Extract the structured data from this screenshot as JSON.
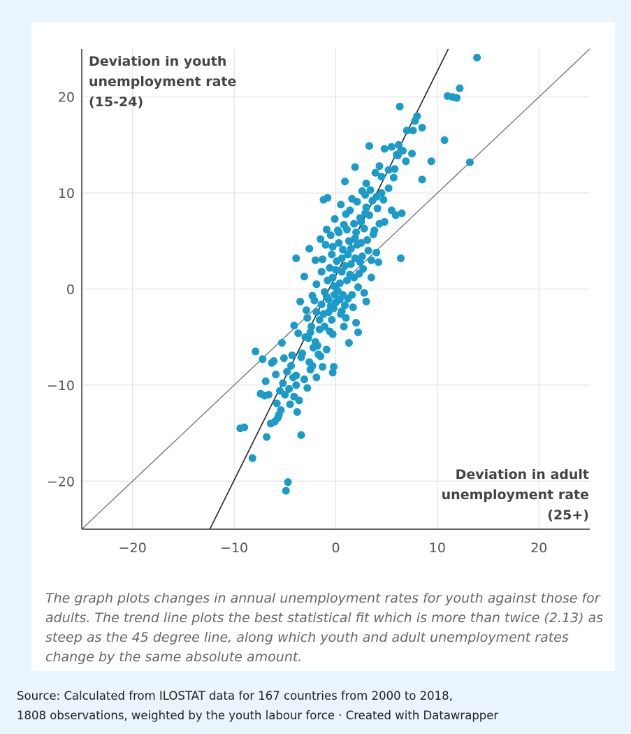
{
  "chart_data": {
    "type": "scatter",
    "title": "",
    "xlabel": "Deviation in adult unemployment rate (25+)",
    "ylabel": "Deviation in youth unemployment rate (15-24)",
    "xlabel_lines": [
      "Deviation in adult",
      "unemployment rate",
      "(25+)"
    ],
    "ylabel_lines": [
      "Deviation in youth",
      "unemployment rate",
      "(15-24)"
    ],
    "xlim": [
      -25,
      25
    ],
    "ylim": [
      -25,
      25
    ],
    "x_ticks": [
      -20,
      -10,
      0,
      10,
      20
    ],
    "y_ticks": [
      -20,
      -10,
      0,
      10,
      20
    ],
    "x_tick_labels": [
      "−20",
      "−10",
      "0",
      "10",
      "20"
    ],
    "y_tick_labels": [
      "−20",
      "−10",
      "0",
      "10",
      "20"
    ],
    "grid": true,
    "point_color": "#1a9bc9",
    "reference_lines": [
      {
        "label": "45 degree line",
        "slope": 1,
        "intercept": 0,
        "color": "#777777"
      },
      {
        "label": "trend line",
        "slope": 2.13,
        "intercept": 1.4,
        "color": "#222222"
      }
    ],
    "points": [
      [
        13.9,
        24.1
      ],
      [
        12.2,
        20.9
      ],
      [
        11.9,
        19.9
      ],
      [
        11.5,
        20.0
      ],
      [
        11.0,
        20.1
      ],
      [
        10.7,
        15.5
      ],
      [
        9.4,
        13.3
      ],
      [
        8.5,
        11.4
      ],
      [
        13.2,
        13.2
      ],
      [
        8.5,
        16.8
      ],
      [
        8.0,
        18.0
      ],
      [
        7.8,
        17.5
      ],
      [
        7.6,
        16.5
      ],
      [
        7.0,
        16.5
      ],
      [
        6.3,
        19.0
      ],
      [
        6.2,
        15.0
      ],
      [
        6.0,
        14.0
      ],
      [
        5.8,
        12.5
      ],
      [
        5.5,
        14.8
      ],
      [
        4.8,
        14.6
      ],
      [
        4.3,
        12.8
      ],
      [
        3.3,
        14.9
      ],
      [
        1.9,
        12.7
      ],
      [
        0.9,
        11.2
      ],
      [
        6.4,
        3.2
      ],
      [
        4.2,
        2.8
      ],
      [
        5.9,
        7.7
      ],
      [
        6.5,
        7.9
      ],
      [
        -0.8,
        9.5
      ],
      [
        -1.2,
        9.3
      ],
      [
        -2.6,
        4.2
      ],
      [
        -3.9,
        3.2
      ],
      [
        -3.1,
        1.3
      ],
      [
        -2.3,
        -0.7
      ],
      [
        -3.5,
        -1.3
      ],
      [
        -2.9,
        -2.2
      ],
      [
        -4.1,
        -3.8
      ],
      [
        -5.3,
        -5.6
      ],
      [
        -6.1,
        -7.5
      ],
      [
        -6.9,
        -9.6
      ],
      [
        -7.4,
        -10.9
      ],
      [
        -7.0,
        -11.1
      ],
      [
        -5.8,
        -11.9
      ],
      [
        -5.6,
        -13.1
      ],
      [
        -6.0,
        -13.8
      ],
      [
        -5.7,
        -13.4
      ],
      [
        -6.4,
        -14.0
      ],
      [
        -6.8,
        -15.4
      ],
      [
        -9.4,
        -14.5
      ],
      [
        -9.0,
        -14.4
      ],
      [
        -8.2,
        -17.6
      ],
      [
        -4.7,
        -20.1
      ],
      [
        -4.9,
        -21.0
      ],
      [
        -3.4,
        -15.2
      ],
      [
        -3.8,
        -12.8
      ],
      [
        -2.8,
        -10.3
      ],
      [
        -3.9,
        -9.0
      ],
      [
        -4.4,
        -8.0
      ],
      [
        -5.1,
        -7.2
      ],
      [
        -5.9,
        -8.9
      ],
      [
        -6.3,
        -7.7
      ],
      [
        -7.9,
        -6.5
      ],
      [
        -7.2,
        -7.3
      ],
      [
        -1.9,
        -9.2
      ],
      [
        -0.3,
        -8.7
      ],
      [
        -0.2,
        -8.1
      ],
      [
        -1.3,
        -8.1
      ],
      [
        0.8,
        -3.9
      ],
      [
        1.3,
        -5.6
      ],
      [
        2.2,
        -4.5
      ],
      [
        2.0,
        -3.5
      ],
      [
        3.0,
        -1.3
      ],
      [
        3.5,
        1.2
      ],
      [
        4.0,
        3.8
      ],
      [
        2.5,
        4.8
      ],
      [
        3.8,
        6.1
      ],
      [
        4.8,
        7.0
      ],
      [
        5.5,
        8.2
      ],
      [
        4.5,
        10.0
      ],
      [
        5.2,
        10.5
      ],
      [
        3.9,
        12.1
      ],
      [
        4.5,
        11.7
      ],
      [
        3.0,
        11.0
      ],
      [
        2.6,
        10.2
      ],
      [
        1.6,
        9.4
      ],
      [
        0.5,
        8.8
      ],
      [
        -0.1,
        7.3
      ],
      [
        -0.9,
        6.2
      ],
      [
        -1.5,
        5.2
      ],
      [
        -2.0,
        3.0
      ],
      [
        -1.4,
        1.8
      ],
      [
        -1.9,
        0.5
      ],
      [
        -1.1,
        -0.3
      ],
      [
        -0.5,
        -1.8
      ],
      [
        -1.6,
        -3.2
      ],
      [
        -2.4,
        -3.9
      ],
      [
        -2.0,
        -5.5
      ],
      [
        -1.5,
        -7.0
      ],
      [
        -0.9,
        -6.3
      ],
      [
        -0.3,
        -4.7
      ],
      [
        0.6,
        -2.3
      ],
      [
        1.1,
        0.9
      ],
      [
        1.5,
        2.6
      ],
      [
        2.1,
        4.6
      ],
      [
        2.8,
        6.3
      ],
      [
        3.3,
        7.7
      ],
      [
        1.0,
        7.8
      ],
      [
        0.3,
        5.9
      ],
      [
        -0.3,
        4.4
      ],
      [
        -0.6,
        2.2
      ],
      [
        -0.2,
        0.3
      ],
      [
        0.4,
        -1.1
      ],
      [
        0.9,
        -1.7
      ],
      [
        1.6,
        -0.6
      ],
      [
        2.3,
        1.6
      ],
      [
        2.6,
        3.4
      ],
      [
        3.1,
        5.1
      ],
      [
        1.8,
        6.8
      ],
      [
        0.7,
        4.1
      ],
      [
        0.1,
        2.9
      ],
      [
        -0.7,
        -1.1
      ],
      [
        -1.2,
        -2.6
      ],
      [
        -2.7,
        -5.1
      ],
      [
        -3.3,
        -6.7
      ],
      [
        -2.2,
        -6.1
      ],
      [
        -4.6,
        -10.4
      ],
      [
        -5.2,
        -9.8
      ],
      [
        -4.1,
        -11.2
      ],
      [
        -3.6,
        -11.6
      ],
      [
        -2.5,
        -8.4
      ],
      [
        -1.8,
        -5.9
      ],
      [
        -0.4,
        -3.2
      ],
      [
        0.2,
        -0.2
      ],
      [
        0.6,
        1.8
      ],
      [
        1.2,
        3.6
      ],
      [
        1.9,
        5.3
      ],
      [
        2.4,
        7.4
      ],
      [
        3.6,
        9.2
      ],
      [
        4.1,
        8.4
      ],
      [
        4.7,
        9.3
      ],
      [
        5.2,
        12.4
      ],
      [
        5.7,
        11.6
      ],
      [
        6.1,
        13.9
      ],
      [
        6.6,
        14.4
      ],
      [
        7.5,
        14.1
      ],
      [
        6.9,
        13.3
      ],
      [
        2.9,
        9.8
      ],
      [
        2.1,
        9.1
      ],
      [
        1.4,
        8.2
      ],
      [
        0.8,
        6.7
      ],
      [
        0.2,
        6.1
      ],
      [
        -0.5,
        5.6
      ],
      [
        -1.0,
        4.6
      ],
      [
        -1.3,
        3.1
      ],
      [
        -0.8,
        0.9
      ],
      [
        -0.1,
        -0.6
      ],
      [
        0.5,
        -2.6
      ],
      [
        1.0,
        -3.0
      ],
      [
        1.7,
        -1.9
      ],
      [
        2.2,
        0.2
      ],
      [
        2.7,
        2.1
      ],
      [
        3.2,
        4.0
      ],
      [
        3.7,
        5.7
      ],
      [
        4.3,
        6.8
      ],
      [
        1.3,
        5.0
      ],
      [
        0.6,
        3.2
      ],
      [
        -0.3,
        1.2
      ],
      [
        -0.9,
        -0.8
      ],
      [
        -1.4,
        -1.6
      ],
      [
        -1.9,
        -2.4
      ],
      [
        -2.5,
        -4.5
      ],
      [
        -3.0,
        -5.0
      ],
      [
        -3.4,
        -7.1
      ],
      [
        -2.6,
        -7.6
      ],
      [
        -1.6,
        -4.2
      ],
      [
        -0.7,
        -2.4
      ],
      [
        0.0,
        -1.4
      ],
      [
        0.4,
        0.6
      ],
      [
        0.9,
        2.4
      ],
      [
        1.5,
        4.2
      ],
      [
        2.0,
        5.9
      ],
      [
        2.5,
        7.0
      ],
      [
        3.0,
        8.5
      ],
      [
        3.4,
        10.3
      ],
      [
        4.0,
        9.6
      ],
      [
        -1.1,
        -3.9
      ],
      [
        -2.1,
        -1.2
      ],
      [
        -2.8,
        -3.0
      ],
      [
        -3.7,
        -4.6
      ],
      [
        -4.3,
        -6.9
      ],
      [
        -4.8,
        -8.6
      ],
      [
        -5.5,
        -10.6
      ],
      [
        1.8,
        1.2
      ],
      [
        2.4,
        2.8
      ],
      [
        0.3,
        4.8
      ],
      [
        -0.4,
        3.6
      ],
      [
        1.1,
        6.2
      ],
      [
        2.9,
        7.9
      ],
      [
        3.5,
        3.0
      ],
      [
        2.8,
        -0.4
      ],
      [
        1.2,
        -1.0
      ],
      [
        -0.6,
        -4.4
      ],
      [
        -1.7,
        -6.8
      ],
      [
        -2.3,
        -8.0
      ],
      [
        -3.1,
        -9.4
      ],
      [
        -3.9,
        -10.0
      ],
      [
        -4.5,
        -12.0
      ],
      [
        -5.0,
        -11.0
      ],
      [
        -6.6,
        -11.0
      ],
      [
        -5.4,
        -12.6
      ],
      [
        -4.2,
        -9.2
      ],
      [
        0.0,
        2.0
      ],
      [
        0.7,
        -0.6
      ],
      [
        1.4,
        1.5
      ],
      [
        1.9,
        3.2
      ],
      [
        -0.2,
        -2.0
      ]
    ]
  },
  "caption": "The graph plots changes in annual unemployment rates for youth against those for adults. The trend line plots the best statistical fit which is more than twice (2.13) as steep as the 45 degree line, along which youth and adult unemployment rates change by the same absolute amount.",
  "footer": {
    "line1": "Source: Calculated from ILOSTAT data for 167 countries from 2000 to 2018,",
    "line2": "1808 observations, weighted by the youth labour force · Created with Datawrapper"
  }
}
